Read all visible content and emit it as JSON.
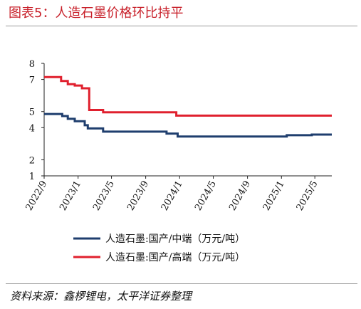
{
  "figure": {
    "title": "图表5：人造石墨价格环比持平",
    "source_prefix": "资料来源：",
    "source_body": "鑫椤锂电，太平洋证券整理"
  },
  "chart_data": {
    "type": "line",
    "title": "",
    "xlabel": "",
    "ylabel": "",
    "ylim": [
      1,
      8
    ],
    "yticks": [
      1,
      2,
      4,
      5,
      7,
      8
    ],
    "x_range": [
      "2022-09-01",
      "2025-07-01"
    ],
    "x_ticks": [
      "2022/9",
      "2023/1",
      "2023/5",
      "2023/9",
      "2024/1",
      "2024/5",
      "2024/9",
      "2025/1",
      "2025/5"
    ],
    "legend_position": "bottom",
    "grid": false,
    "series": [
      {
        "name": "人造石墨:国产/中端（万元/吨）",
        "color": "#1f3e6e",
        "points": [
          [
            "2022-09-01",
            4.85
          ],
          [
            "2022-11-05",
            4.85
          ],
          [
            "2022-11-05",
            4.72
          ],
          [
            "2022-11-25",
            4.72
          ],
          [
            "2022-11-25",
            4.55
          ],
          [
            "2022-12-20",
            4.55
          ],
          [
            "2022-12-20",
            4.4
          ],
          [
            "2023-01-25",
            4.4
          ],
          [
            "2023-01-25",
            4.15
          ],
          [
            "2023-02-05",
            4.15
          ],
          [
            "2023-02-05",
            3.95
          ],
          [
            "2023-04-01",
            3.95
          ],
          [
            "2023-04-01",
            3.75
          ],
          [
            "2023-11-15",
            3.75
          ],
          [
            "2023-11-15",
            3.63
          ],
          [
            "2023-12-25",
            3.63
          ],
          [
            "2023-12-25",
            3.45
          ],
          [
            "2025-01-20",
            3.45
          ],
          [
            "2025-01-20",
            3.53
          ],
          [
            "2025-04-20",
            3.53
          ],
          [
            "2025-04-20",
            3.57
          ],
          [
            "2025-07-01",
            3.57
          ]
        ]
      },
      {
        "name": "人造石墨:国产/高端（万元/吨）",
        "color": "#e0202e",
        "points": [
          [
            "2022-09-01",
            7.15
          ],
          [
            "2022-11-01",
            7.15
          ],
          [
            "2022-11-01",
            6.9
          ],
          [
            "2022-11-25",
            6.9
          ],
          [
            "2022-11-25",
            6.7
          ],
          [
            "2022-12-20",
            6.7
          ],
          [
            "2022-12-20",
            6.62
          ],
          [
            "2023-01-15",
            6.62
          ],
          [
            "2023-01-15",
            6.45
          ],
          [
            "2023-02-10",
            6.45
          ],
          [
            "2023-02-10",
            5.1
          ],
          [
            "2023-04-01",
            5.1
          ],
          [
            "2023-04-01",
            4.95
          ],
          [
            "2023-12-20",
            4.95
          ],
          [
            "2023-12-20",
            4.75
          ],
          [
            "2025-07-01",
            4.75
          ]
        ]
      }
    ]
  }
}
